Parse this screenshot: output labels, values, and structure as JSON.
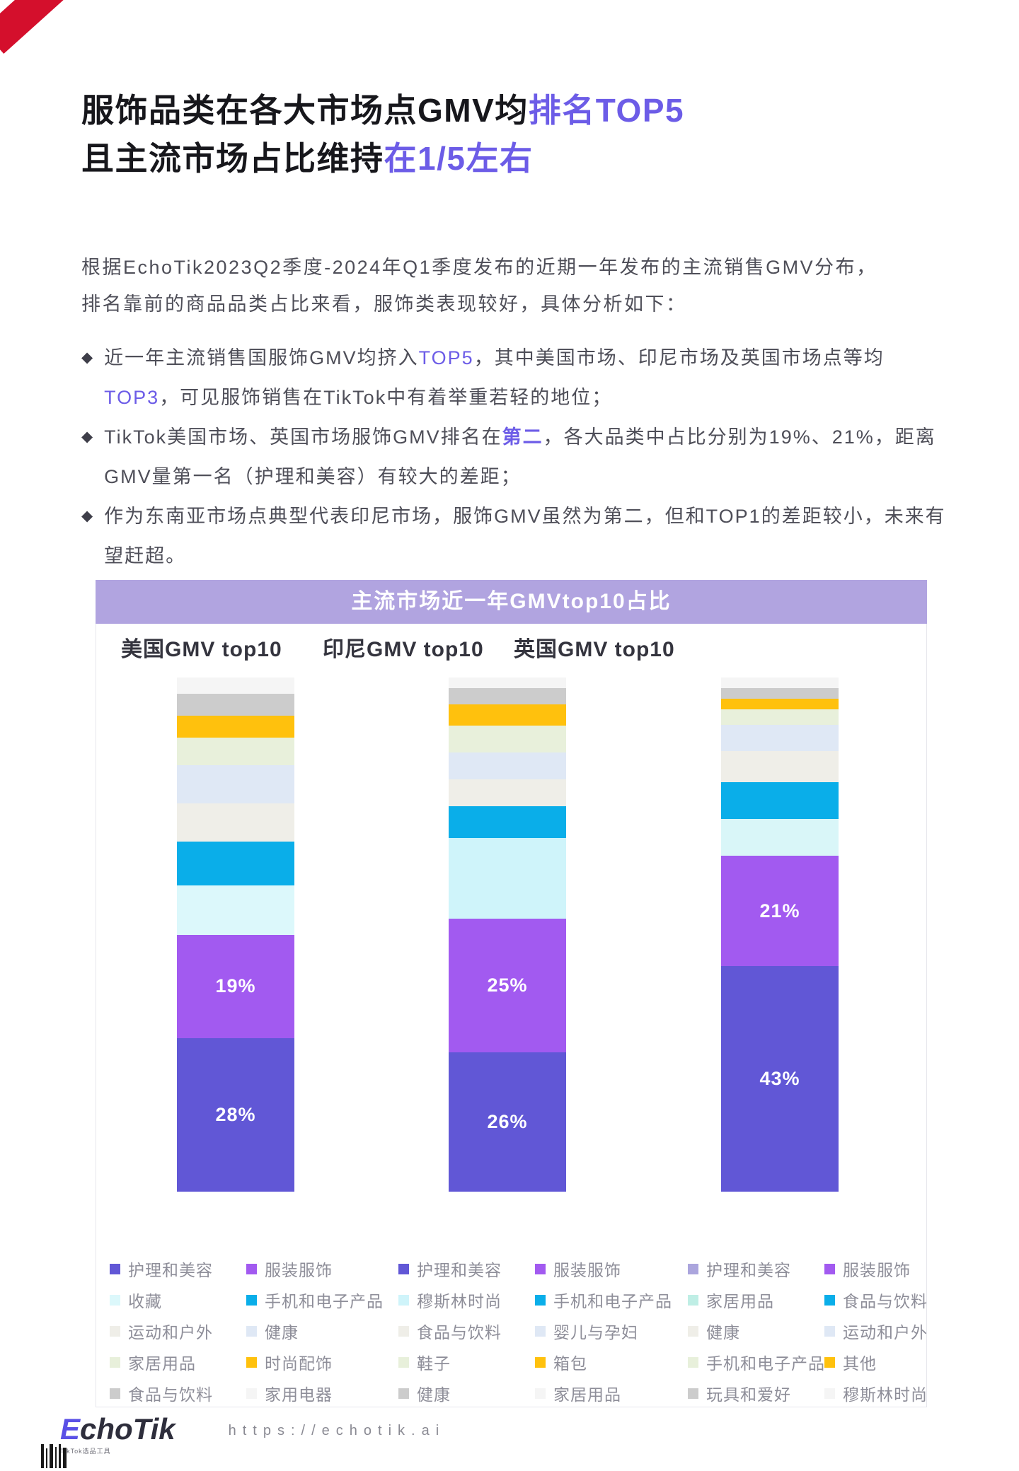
{
  "colors": {
    "accent": "#6c5ce7",
    "banner": "#b1a4e0"
  },
  "header": {
    "title_line1_main": "服饰品类在各大市场点GMV均",
    "title_line1_accent": "排名TOP5",
    "title_line2_main": "且主流市场占比维持",
    "title_line2_accent": "在1/5左右"
  },
  "intro": {
    "line1": "根据EchoTik2023Q2季度-2024年Q1季度发布的近期一年发布的主流销售GMV分布，",
    "line2": "排名靠前的商品品类占比来看，服饰类表现较好，具体分析如下："
  },
  "bullets": [
    {
      "part1": "近一年主流销售国服饰GMV均挤入",
      "accent1": "TOP5",
      "part2": "，其中美国市场、印尼市场及英国市场点等均",
      "accent2": "TOP3",
      "part3": "，可见服饰销售在TikTok中有着举重若轻的地位；"
    },
    {
      "part1": "TikTok美国市场、英国市场服饰GMV排名在",
      "accent1": "第二",
      "part2": "，各大品类中占比分别为19%、21%，距离GMV量第一名（护理和美容）有较大的差距；",
      "accent2": "",
      "part3": ""
    },
    {
      "part1": "作为东南亚市场点典型代表印尼市场，服饰GMV虽然为第二，但和TOP1的差距较小，未来有望赶超。",
      "accent1": "",
      "part2": "",
      "accent2": "",
      "part3": ""
    }
  ],
  "chart_banner": "主流市场近一年GMVtop10占比",
  "chart_data": [
    {
      "type": "stacked-bar",
      "title": "美国GMV top10",
      "stack_order": "bottom-to-top",
      "segments": [
        {
          "label": "护理和美容",
          "value": 28,
          "display": "28%",
          "color": "#6157d6"
        },
        {
          "label": "服装服饰",
          "value": 19,
          "display": "19%",
          "color": "#a25af0"
        },
        {
          "label": "收藏",
          "value": 9,
          "display": null,
          "color": "#dcf8fb"
        },
        {
          "label": "手机和电子产品",
          "value": 8,
          "display": null,
          "color": "#0aaee9"
        },
        {
          "label": "运动和户外",
          "value": 7,
          "display": null,
          "color": "#efeee8"
        },
        {
          "label": "健康",
          "value": 7,
          "display": null,
          "color": "#dfe8f5"
        },
        {
          "label": "家居用品",
          "value": 5,
          "display": null,
          "color": "#e8f0db"
        },
        {
          "label": "时尚配饰",
          "value": 4,
          "display": null,
          "color": "#ffc10d"
        },
        {
          "label": "食品与饮料",
          "value": 4,
          "display": null,
          "color": "#cccccc"
        },
        {
          "label": "家用电器",
          "value": 3,
          "display": null,
          "color": "#f5f5f5"
        }
      ]
    },
    {
      "type": "stacked-bar",
      "title": "印尼GMV top10",
      "stack_order": "bottom-to-top",
      "segments": [
        {
          "label": "护理和美容",
          "value": 26,
          "display": "26%",
          "color": "#6157d6"
        },
        {
          "label": "服装服饰",
          "value": 25,
          "display": "25%",
          "color": "#a25af0"
        },
        {
          "label": "穆斯林时尚",
          "value": 15,
          "display": null,
          "color": "#cff4fa"
        },
        {
          "label": "手机和电子产品",
          "value": 6,
          "display": null,
          "color": "#0aaee9"
        },
        {
          "label": "食品与饮料",
          "value": 5,
          "display": null,
          "color": "#efeee8"
        },
        {
          "label": "婴儿与孕妇",
          "value": 5,
          "display": null,
          "color": "#dfe8f5"
        },
        {
          "label": "鞋子",
          "value": 5,
          "display": null,
          "color": "#e8f0db"
        },
        {
          "label": "箱包",
          "value": 4,
          "display": null,
          "color": "#ffc10d"
        },
        {
          "label": "健康",
          "value": 3,
          "display": null,
          "color": "#cccccc"
        },
        {
          "label": "家居用品",
          "value": 2,
          "display": null,
          "color": "#f5f5f5"
        }
      ]
    },
    {
      "type": "stacked-bar",
      "title": "英国GMV top10",
      "stack_order": "bottom-to-top",
      "segments": [
        {
          "label": "护理和美容",
          "value": 43,
          "display": "43%",
          "color": "#6157d6",
          "legend_color": "#aba5dd"
        },
        {
          "label": "服装服饰",
          "value": 21,
          "display": "21%",
          "color": "#a25af0"
        },
        {
          "label": "家居用品",
          "value": 7,
          "display": null,
          "color": "#d9f6f8",
          "legend_color": "#bfeee5"
        },
        {
          "label": "食品与饮料",
          "value": 7,
          "display": null,
          "color": "#0aaee9"
        },
        {
          "label": "健康",
          "value": 6,
          "display": null,
          "color": "#efeee8"
        },
        {
          "label": "运动和户外",
          "value": 5,
          "display": null,
          "color": "#dfe8f5"
        },
        {
          "label": "手机和电子产品",
          "value": 3,
          "display": null,
          "color": "#e8f0db"
        },
        {
          "label": "其他",
          "value": 2,
          "display": null,
          "color": "#ffc10d"
        },
        {
          "label": "玩具和爱好",
          "value": 2,
          "display": null,
          "color": "#cccccc"
        },
        {
          "label": "穆斯林时尚",
          "value": 2,
          "display": null,
          "color": "#f5f5f5"
        }
      ]
    }
  ],
  "footer": {
    "logo_e": "E",
    "logo_rest": "choTik",
    "logo_sub": "TikTok选品工具",
    "url": "https://echotik.ai"
  }
}
